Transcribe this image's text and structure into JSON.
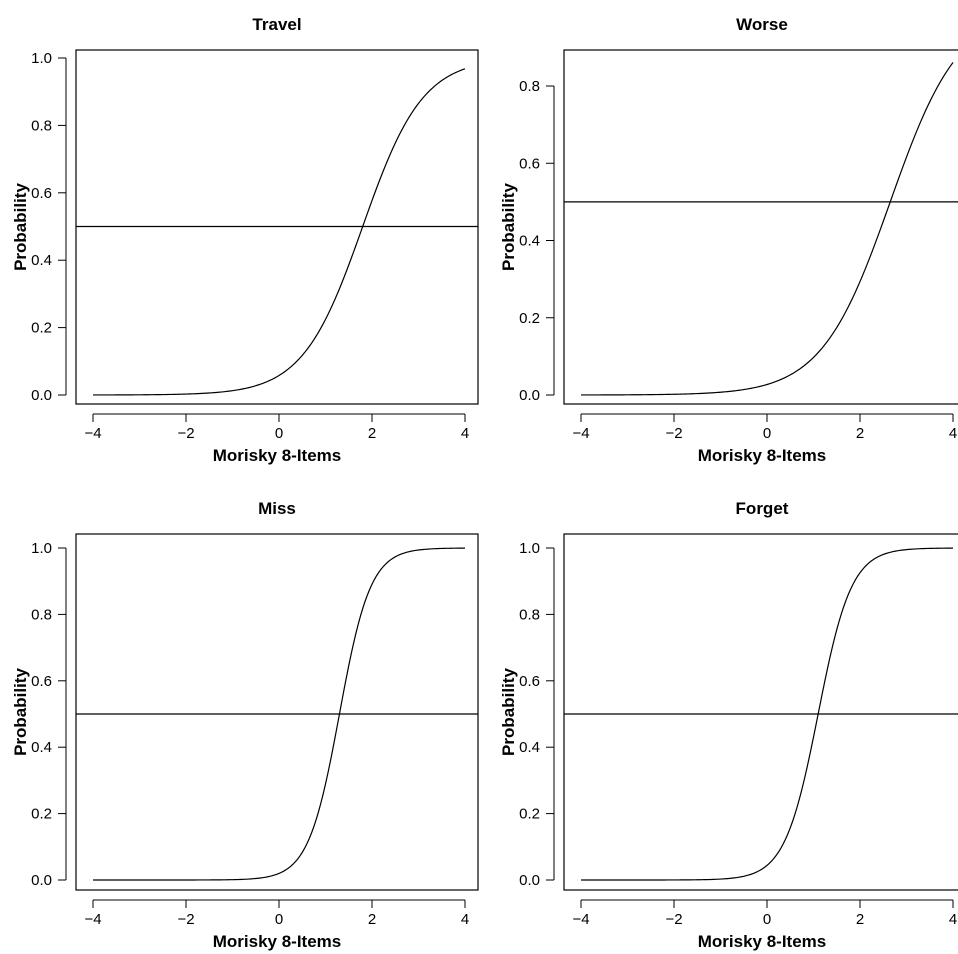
{
  "chart_data": [
    {
      "type": "line",
      "title": "Travel",
      "xlabel": "Morisky 8-Items",
      "ylabel": "Probability",
      "xlim": [
        -4,
        4
      ],
      "ylim": [
        0,
        1
      ],
      "xticks": [
        -4,
        -2,
        0,
        2,
        4
      ],
      "yticks": [
        0.0,
        0.2,
        0.4,
        0.6,
        0.8,
        1.0
      ],
      "xtick_labels": [
        "−4",
        "−2",
        "0",
        "2",
        "4"
      ],
      "ytick_labels": [
        "0.0",
        "0.2",
        "0.4",
        "0.6",
        "0.8",
        "1.0"
      ],
      "reference_line_y": 0.5,
      "curve": {
        "location": 1.8,
        "slope": 1.55
      },
      "series": [
        {
          "x": [
            -4,
            -3,
            -2,
            -1,
            0,
            0.5,
            1,
            1.5,
            1.8,
            2,
            2.5,
            3,
            3.5,
            4
          ],
          "y": [
            0.0,
            0.0,
            0.003,
            0.015,
            0.06,
            0.13,
            0.23,
            0.38,
            0.5,
            0.58,
            0.74,
            0.86,
            0.93,
            0.965
          ]
        }
      ],
      "grid": false
    },
    {
      "type": "line",
      "title": "Worse",
      "xlabel": "Morisky 8-Items",
      "ylabel": "Probability",
      "xlim": [
        -4,
        4
      ],
      "ylim": [
        0,
        0.87
      ],
      "xticks": [
        -4,
        -2,
        0,
        2,
        4
      ],
      "yticks": [
        0.0,
        0.2,
        0.4,
        0.6,
        0.8
      ],
      "xtick_labels": [
        "−4",
        "−2",
        "0",
        "2",
        "4"
      ],
      "ytick_labels": [
        "0.0",
        "0.2",
        "0.4",
        "0.6",
        "0.8"
      ],
      "reference_line_y": 0.5,
      "curve": {
        "location": 2.65,
        "slope": 1.35
      },
      "series": [
        {
          "x": [
            -4,
            -3,
            -2,
            -1,
            0,
            0.5,
            1,
            1.5,
            2,
            2.5,
            2.65,
            3,
            3.5,
            4
          ],
          "y": [
            0.0,
            0.0,
            0.001,
            0.006,
            0.027,
            0.05,
            0.1,
            0.18,
            0.3,
            0.45,
            0.5,
            0.62,
            0.76,
            0.86
          ]
        }
      ],
      "grid": false
    },
    {
      "type": "line",
      "title": "Miss",
      "xlabel": "Morisky 8-Items",
      "ylabel": "Probability",
      "xlim": [
        -4,
        4
      ],
      "ylim": [
        0,
        1
      ],
      "xticks": [
        -4,
        -2,
        0,
        2,
        4
      ],
      "yticks": [
        0.0,
        0.2,
        0.4,
        0.6,
        0.8,
        1.0
      ],
      "xtick_labels": [
        "−4",
        "−2",
        "0",
        "2",
        "4"
      ],
      "ytick_labels": [
        "0.0",
        "0.2",
        "0.4",
        "0.6",
        "0.8",
        "1.0"
      ],
      "reference_line_y": 0.5,
      "curve": {
        "location": 1.3,
        "slope": 3.0
      },
      "series": [
        {
          "x": [
            -4,
            -2,
            -1,
            0,
            0.5,
            1,
            1.3,
            1.5,
            2,
            2.5,
            3,
            4
          ],
          "y": [
            0.0,
            0.0,
            0.003,
            0.03,
            0.1,
            0.3,
            0.5,
            0.65,
            0.88,
            0.97,
            0.99,
            1.0
          ]
        }
      ],
      "grid": false
    },
    {
      "type": "line",
      "title": "Forget",
      "xlabel": "Morisky 8-Items",
      "ylabel": "Probability",
      "xlim": [
        -4,
        4
      ],
      "ylim": [
        0,
        1
      ],
      "xticks": [
        -4,
        -2,
        0,
        2,
        4
      ],
      "yticks": [
        0.0,
        0.2,
        0.4,
        0.6,
        0.8,
        1.0
      ],
      "xtick_labels": [
        "−4",
        "−2",
        "0",
        "2",
        "4"
      ],
      "ytick_labels": [
        "0.0",
        "0.2",
        "0.4",
        "0.6",
        "0.8",
        "1.0"
      ],
      "reference_line_y": 0.5,
      "curve": {
        "location": 1.1,
        "slope": 2.8
      },
      "series": [
        {
          "x": [
            -4,
            -2,
            -1,
            0,
            0.5,
            1,
            1.1,
            1.5,
            2,
            2.5,
            3,
            4
          ],
          "y": [
            0.0,
            0.0,
            0.004,
            0.04,
            0.16,
            0.43,
            0.5,
            0.75,
            0.92,
            0.98,
            0.995,
            1.0
          ]
        }
      ],
      "grid": false
    }
  ],
  "colors": {
    "line": "#000000",
    "background": "#ffffff"
  }
}
